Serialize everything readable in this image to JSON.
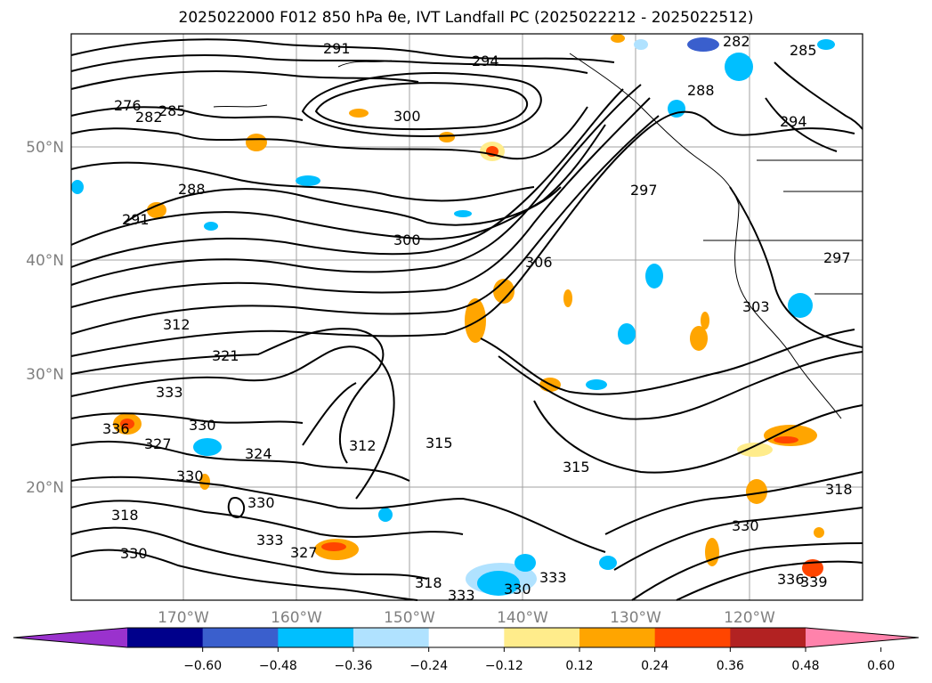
{
  "title": "2025022000 F012 850 hPa θe, IVT Landfall PC (2025022212 - 2025022512)",
  "map": {
    "lat_ticks": [
      "50°N",
      "40°N",
      "30°N",
      "20°N"
    ],
    "lon_ticks": [
      "170°W",
      "160°W",
      "150°W",
      "140°W",
      "130°W",
      "120°W"
    ],
    "contour_labels": [
      "291",
      "294",
      "282",
      "285",
      "300",
      "288",
      "294",
      "288",
      "297",
      "291",
      "306",
      "303",
      "300",
      "312",
      "321",
      "333",
      "330",
      "336",
      "327",
      "330",
      "315",
      "312",
      "315",
      "324",
      "330",
      "318",
      "333",
      "327",
      "318",
      "330",
      "336",
      "339",
      "330",
      "318",
      "333",
      "330",
      "333",
      "297",
      "276",
      "282",
      "285"
    ]
  },
  "colorbar": {
    "ticks": [
      "−0.60",
      "−0.48",
      "−0.36",
      "−0.24",
      "−0.12",
      "0.12",
      "0.24",
      "0.36",
      "0.48",
      "0.60"
    ],
    "colors": [
      "#9a32cd",
      "#00008b",
      "#3a5fcd",
      "#00bfff",
      "#b0e2ff",
      "#ffffff",
      "#ffec8b",
      "#ffa500",
      "#ff4500",
      "#b22222",
      "#ff82ab"
    ]
  }
}
